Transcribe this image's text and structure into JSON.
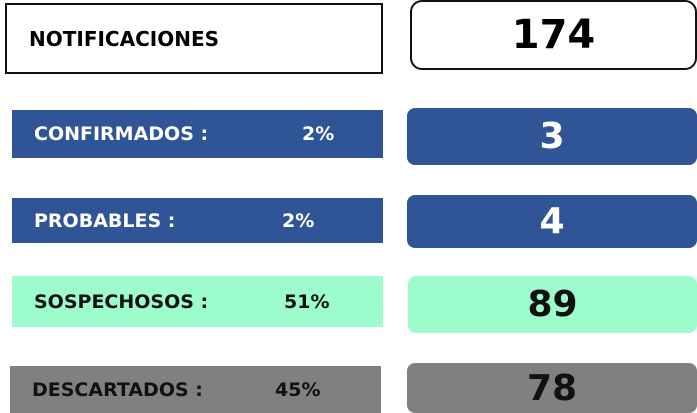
{
  "header": {
    "label": "NOTIFICACIONES",
    "count": 174
  },
  "rows": [
    {
      "label": "CONFIRMADOS :",
      "percent": "2%",
      "count": 3
    },
    {
      "label": "PROBABLES :",
      "percent": "2%",
      "count": 4
    },
    {
      "label": "SOSPECHOSOS :",
      "percent": "51%",
      "count": 89
    },
    {
      "label": "DESCARTADOS :",
      "percent": "45%",
      "count": 78
    }
  ]
}
